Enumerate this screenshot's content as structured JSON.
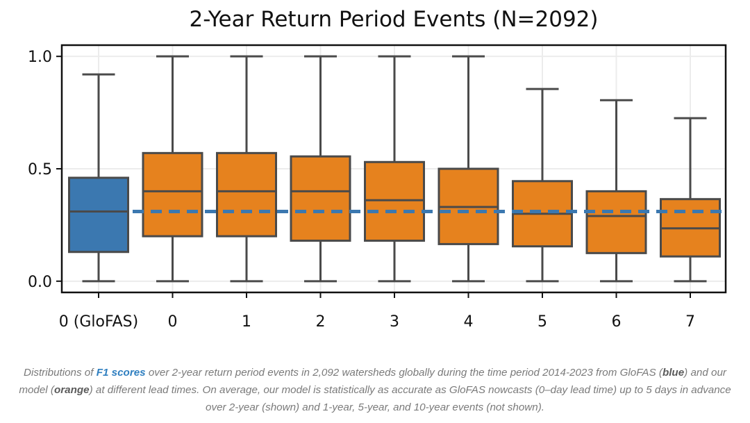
{
  "chart_data": {
    "type": "box",
    "title": "2-Year Return Period Events (N=2092)",
    "xlabel": "",
    "ylabel": "",
    "ylim": [
      -0.05,
      1.05
    ],
    "yticks": [
      0.0,
      0.5,
      1.0
    ],
    "ytick_labels": [
      "0.0",
      "0.5",
      "1.0"
    ],
    "grid": true,
    "categories": [
      "0 (GloFAS)",
      "0",
      "1",
      "2",
      "3",
      "4",
      "5",
      "6",
      "7"
    ],
    "boxes": [
      {
        "category": "0 (GloFAS)",
        "whisker_low": 0.0,
        "q1": 0.13,
        "median": 0.31,
        "q3": 0.46,
        "whisker_high": 0.92,
        "color": "#3b78b0"
      },
      {
        "category": "0",
        "whisker_low": 0.0,
        "q1": 0.2,
        "median": 0.4,
        "q3": 0.57,
        "whisker_high": 1.0,
        "color": "#e6821e"
      },
      {
        "category": "1",
        "whisker_low": 0.0,
        "q1": 0.2,
        "median": 0.4,
        "q3": 0.57,
        "whisker_high": 1.0,
        "color": "#e6821e"
      },
      {
        "category": "2",
        "whisker_low": 0.0,
        "q1": 0.18,
        "median": 0.4,
        "q3": 0.555,
        "whisker_high": 1.0,
        "color": "#e6821e"
      },
      {
        "category": "3",
        "whisker_low": 0.0,
        "q1": 0.18,
        "median": 0.36,
        "q3": 0.53,
        "whisker_high": 1.0,
        "color": "#e6821e"
      },
      {
        "category": "4",
        "whisker_low": 0.0,
        "q1": 0.165,
        "median": 0.33,
        "q3": 0.5,
        "whisker_high": 1.0,
        "color": "#e6821e"
      },
      {
        "category": "5",
        "whisker_low": 0.0,
        "q1": 0.155,
        "median": 0.3,
        "q3": 0.445,
        "whisker_high": 0.855,
        "color": "#e6821e"
      },
      {
        "category": "6",
        "whisker_low": 0.0,
        "q1": 0.125,
        "median": 0.29,
        "q3": 0.4,
        "whisker_high": 0.805,
        "color": "#e6821e"
      },
      {
        "category": "7",
        "whisker_low": 0.0,
        "q1": 0.11,
        "median": 0.235,
        "q3": 0.365,
        "whisker_high": 0.725,
        "color": "#e6821e"
      }
    ],
    "reference_line": {
      "y": 0.31,
      "style": "dashed",
      "color": "#3b78b0"
    },
    "colors": {
      "glofas": "#3b78b0",
      "model": "#e6821e",
      "outline": "#4a4a4a",
      "grid": "#ececec"
    }
  },
  "caption": {
    "t1": "Distributions of ",
    "t2": "F1 scores",
    "t3": " over 2-year return period events in 2,092 watersheds globally during the time period 2014-2023 from GloFAS (",
    "t4": "blue",
    "t5": ") and our model (",
    "t6": "orange",
    "t7": ") at different lead times. On average, our model is statistically as accurate as GloFAS nowcasts (0–day lead time) up to 5 days in advance over 2-year (shown) and 1-year, 5-year, and 10-year events (not shown)."
  }
}
